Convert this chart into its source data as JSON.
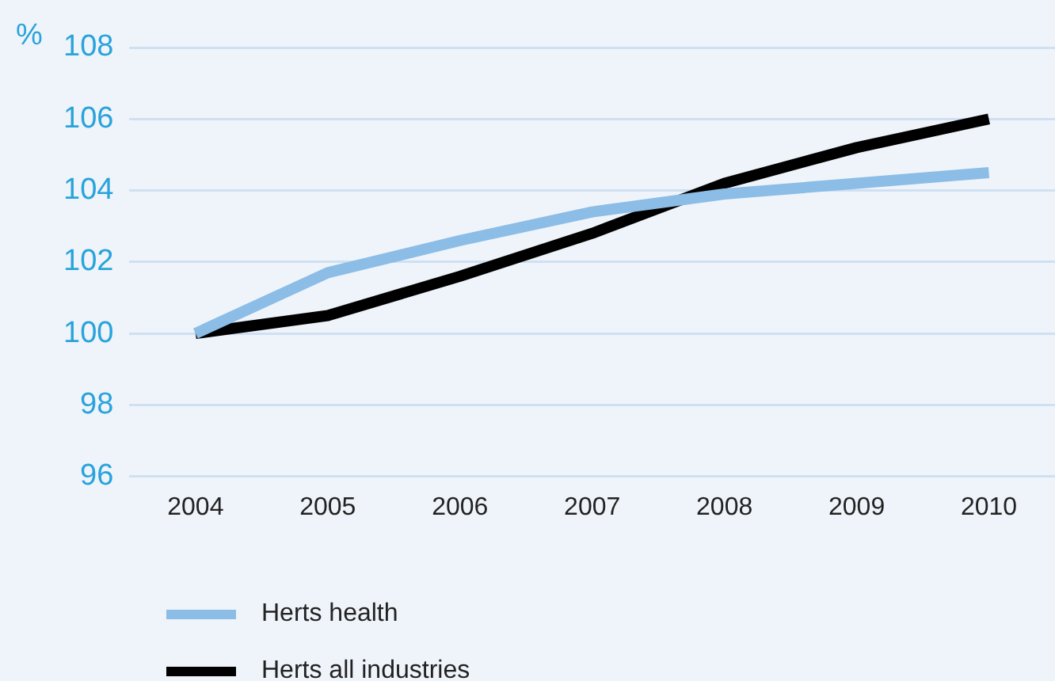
{
  "chart_data": {
    "type": "line",
    "ylabel": "%",
    "categories": [
      "2004",
      "2005",
      "2006",
      "2007",
      "2008",
      "2009",
      "2010"
    ],
    "series": [
      {
        "name": "Herts health",
        "color": "#8bbde6",
        "values": [
          100,
          101.7,
          102.6,
          103.4,
          103.9,
          104.2,
          104.5
        ]
      },
      {
        "name": "Herts all industries",
        "color": "#000000",
        "values": [
          100,
          100.5,
          101.6,
          102.8,
          104.2,
          105.2,
          106.0
        ]
      }
    ],
    "ylim": [
      96,
      108
    ],
    "yticks": [
      96,
      98,
      100,
      102,
      104,
      106,
      108
    ],
    "grid": "y",
    "legend": "bottom",
    "marker": "none",
    "line_style": "solid"
  }
}
